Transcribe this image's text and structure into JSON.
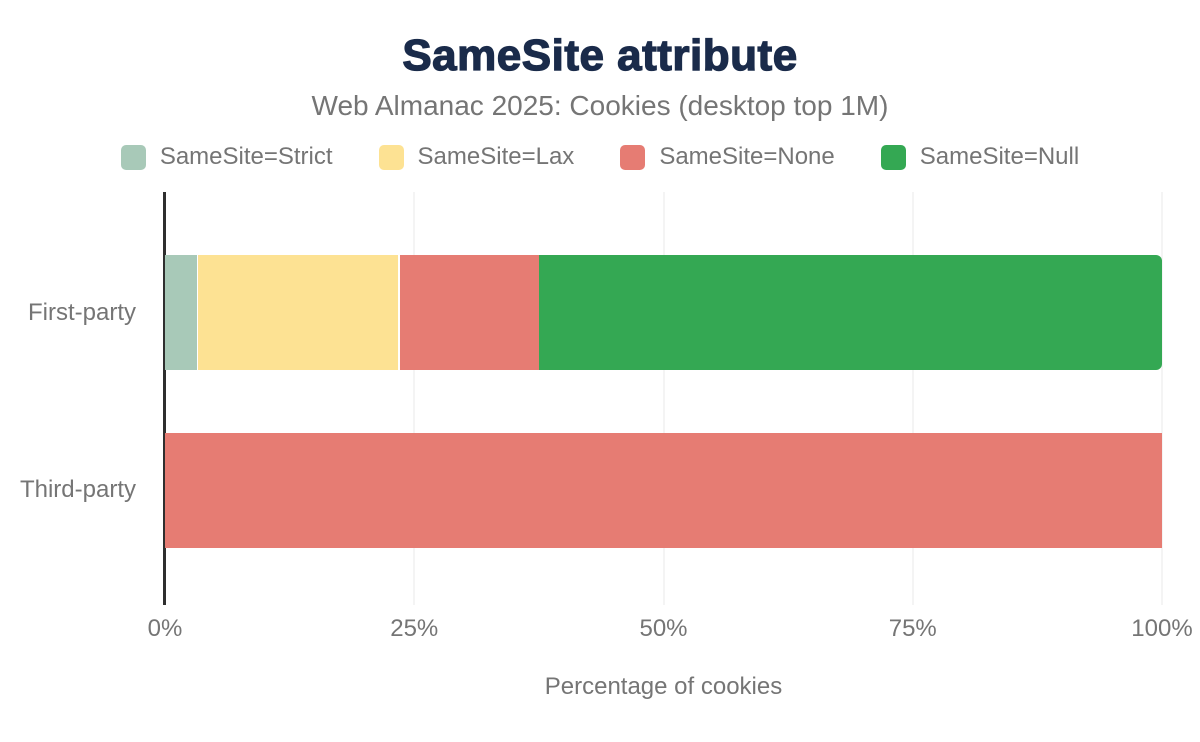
{
  "header": {
    "title": "SameSite attribute",
    "subtitle": "Web Almanac 2025: Cookies (desktop top 1M)"
  },
  "colors": {
    "title_text": "#1a2b4a",
    "muted_text": "#757575",
    "axis_line": "#2f2f2f",
    "gridline": "#e9e9e9",
    "background": "#ffffff"
  },
  "chart_data": {
    "type": "bar",
    "orientation": "horizontal",
    "stacked": true,
    "title": "SameSite attribute",
    "subtitle": "Web Almanac 2025: Cookies (desktop top 1M)",
    "categories": [
      "First-party",
      "Third-party"
    ],
    "series": [
      {
        "name": "SameSite=Strict",
        "color": "#a8c9b8",
        "values": [
          3.3,
          0
        ]
      },
      {
        "name": "SameSite=Lax",
        "color": "#fde293",
        "values": [
          20.3,
          0
        ]
      },
      {
        "name": "SameSite=None",
        "color": "#e67c73",
        "values": [
          13.9,
          100
        ]
      },
      {
        "name": "SameSite=Null",
        "color": "#34a853",
        "values": [
          62.5,
          0
        ]
      }
    ],
    "xlabel": "Percentage of cookies",
    "ylabel": "",
    "xlim": [
      0,
      100
    ],
    "xticks": [
      0,
      25,
      50,
      75,
      100
    ],
    "xtick_labels": [
      "0%",
      "25%",
      "50%",
      "75%",
      "100%"
    ],
    "grid": true,
    "legend_position": "top"
  }
}
